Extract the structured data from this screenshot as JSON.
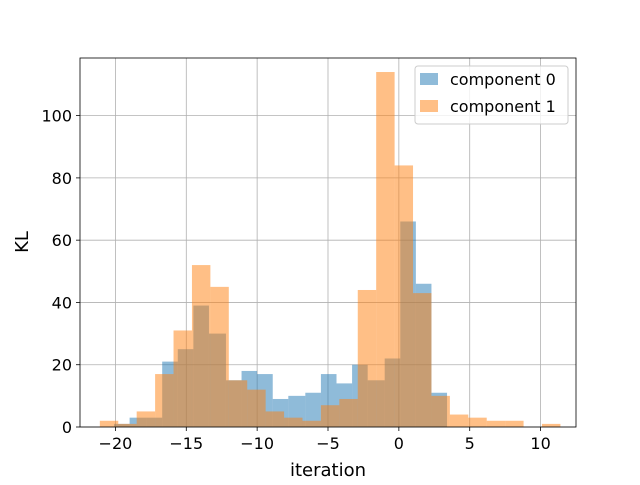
{
  "chart_data": {
    "type": "bar",
    "histogram": true,
    "xlabel": "iteration",
    "ylabel": "KL",
    "xlim": [
      -22.5,
      12.5
    ],
    "ylim": [
      0,
      118.5
    ],
    "xticks": [
      -20,
      -15,
      -10,
      -5,
      0,
      5,
      10
    ],
    "xtick_labels": [
      "−20",
      "−15",
      "−10",
      "−5",
      "0",
      "5",
      "10"
    ],
    "yticks": [
      0,
      20,
      40,
      60,
      80,
      100
    ],
    "ytick_labels": [
      "0",
      "20",
      "40",
      "60",
      "80",
      "100"
    ],
    "grid": true,
    "legend_position": "top-right",
    "series": [
      {
        "name": "component 0",
        "color": "#1f77b4",
        "alpha": 0.5,
        "bins": [
          {
            "x0": -20.1,
            "x1": -19.0,
            "value": 1
          },
          {
            "x0": -19.0,
            "x1": -17.8,
            "value": 3
          },
          {
            "x0": -17.8,
            "x1": -16.7,
            "value": 3
          },
          {
            "x0": -16.7,
            "x1": -15.6,
            "value": 21
          },
          {
            "x0": -15.6,
            "x1": -14.5,
            "value": 25
          },
          {
            "x0": -14.5,
            "x1": -13.4,
            "value": 39
          },
          {
            "x0": -13.4,
            "x1": -12.2,
            "value": 30
          },
          {
            "x0": -12.2,
            "x1": -11.1,
            "value": 15
          },
          {
            "x0": -11.1,
            "x1": -10.0,
            "value": 18
          },
          {
            "x0": -10.0,
            "x1": -8.9,
            "value": 17
          },
          {
            "x0": -8.9,
            "x1": -7.8,
            "value": 9
          },
          {
            "x0": -7.8,
            "x1": -6.6,
            "value": 10
          },
          {
            "x0": -6.6,
            "x1": -5.5,
            "value": 11
          },
          {
            "x0": -5.5,
            "x1": -4.4,
            "value": 17
          },
          {
            "x0": -4.4,
            "x1": -3.3,
            "value": 14
          },
          {
            "x0": -3.3,
            "x1": -2.2,
            "value": 20
          },
          {
            "x0": -2.2,
            "x1": -1.0,
            "value": 15
          },
          {
            "x0": -1.0,
            "x1": 0.1,
            "value": 22
          },
          {
            "x0": 0.1,
            "x1": 1.2,
            "value": 66
          },
          {
            "x0": 1.2,
            "x1": 2.3,
            "value": 46
          },
          {
            "x0": 2.3,
            "x1": 3.4,
            "value": 11
          }
        ]
      },
      {
        "name": "component 1",
        "color": "#ff7f0e",
        "alpha": 0.5,
        "bins": [
          {
            "x0": -21.1,
            "x1": -19.8,
            "value": 2
          },
          {
            "x0": -19.8,
            "x1": -18.5,
            "value": 1
          },
          {
            "x0": -18.5,
            "x1": -17.2,
            "value": 5
          },
          {
            "x0": -17.2,
            "x1": -15.9,
            "value": 17
          },
          {
            "x0": -15.9,
            "x1": -14.6,
            "value": 31
          },
          {
            "x0": -14.6,
            "x1": -13.3,
            "value": 52
          },
          {
            "x0": -13.3,
            "x1": -12.0,
            "value": 45
          },
          {
            "x0": -12.0,
            "x1": -10.7,
            "value": 15
          },
          {
            "x0": -10.7,
            "x1": -9.4,
            "value": 12
          },
          {
            "x0": -9.4,
            "x1": -8.1,
            "value": 5
          },
          {
            "x0": -8.1,
            "x1": -6.8,
            "value": 3
          },
          {
            "x0": -6.8,
            "x1": -5.5,
            "value": 2
          },
          {
            "x0": -5.5,
            "x1": -4.2,
            "value": 7
          },
          {
            "x0": -4.2,
            "x1": -2.9,
            "value": 9
          },
          {
            "x0": -2.9,
            "x1": -1.6,
            "value": 44
          },
          {
            "x0": -1.6,
            "x1": -0.3,
            "value": 114
          },
          {
            "x0": -0.3,
            "x1": 1.0,
            "value": 84
          },
          {
            "x0": 1.0,
            "x1": 2.3,
            "value": 43
          },
          {
            "x0": 2.3,
            "x1": 3.6,
            "value": 10
          },
          {
            "x0": 3.6,
            "x1": 4.9,
            "value": 4
          },
          {
            "x0": 4.9,
            "x1": 6.2,
            "value": 3
          },
          {
            "x0": 6.2,
            "x1": 7.5,
            "value": 2
          },
          {
            "x0": 7.5,
            "x1": 8.8,
            "value": 2
          },
          {
            "x0": 8.8,
            "x1": 10.1,
            "value": 0
          },
          {
            "x0": 10.1,
            "x1": 11.4,
            "value": 1
          }
        ]
      }
    ]
  }
}
